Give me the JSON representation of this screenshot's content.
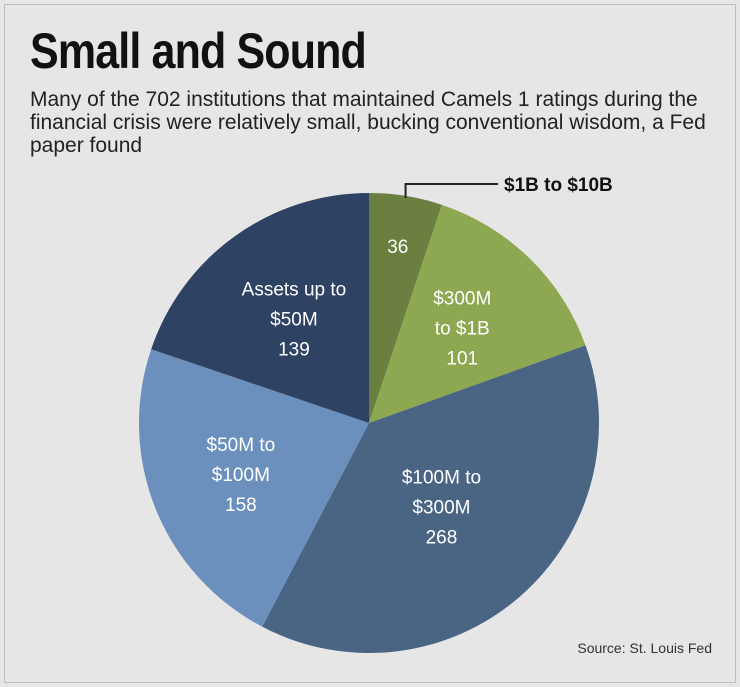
{
  "title": "Small and Sound",
  "subtitle": "Many of the 702 institutions that maintained Camels 1 ratings during the financial crisis were relatively small, bucking conventional wisdom, a Fed paper found",
  "source": "Source: St. Louis Fed",
  "chart_data": {
    "type": "pie",
    "title": "Small and Sound",
    "total": 702,
    "slices": [
      {
        "label": "$1B to $10B",
        "label_lines": [],
        "value": 36,
        "color": "#6a7f40",
        "callout": "$1B to $10B"
      },
      {
        "label": "$300M to $1B",
        "label_lines": [
          "$300M",
          "to $1B"
        ],
        "value": 101,
        "color": "#8ea852"
      },
      {
        "label": "$100M to $300M",
        "label_lines": [
          "$100M to",
          "$300M"
        ],
        "value": 268,
        "color": "#4a6484"
      },
      {
        "label": "$50M to $100M",
        "label_lines": [
          "$50M to",
          "$100M"
        ],
        "value": 158,
        "color": "#6b90bd"
      },
      {
        "label": "Assets up to $50M",
        "label_lines": [
          "Assets up to",
          "$50M"
        ],
        "value": 139,
        "color": "#2e4263"
      }
    ]
  }
}
